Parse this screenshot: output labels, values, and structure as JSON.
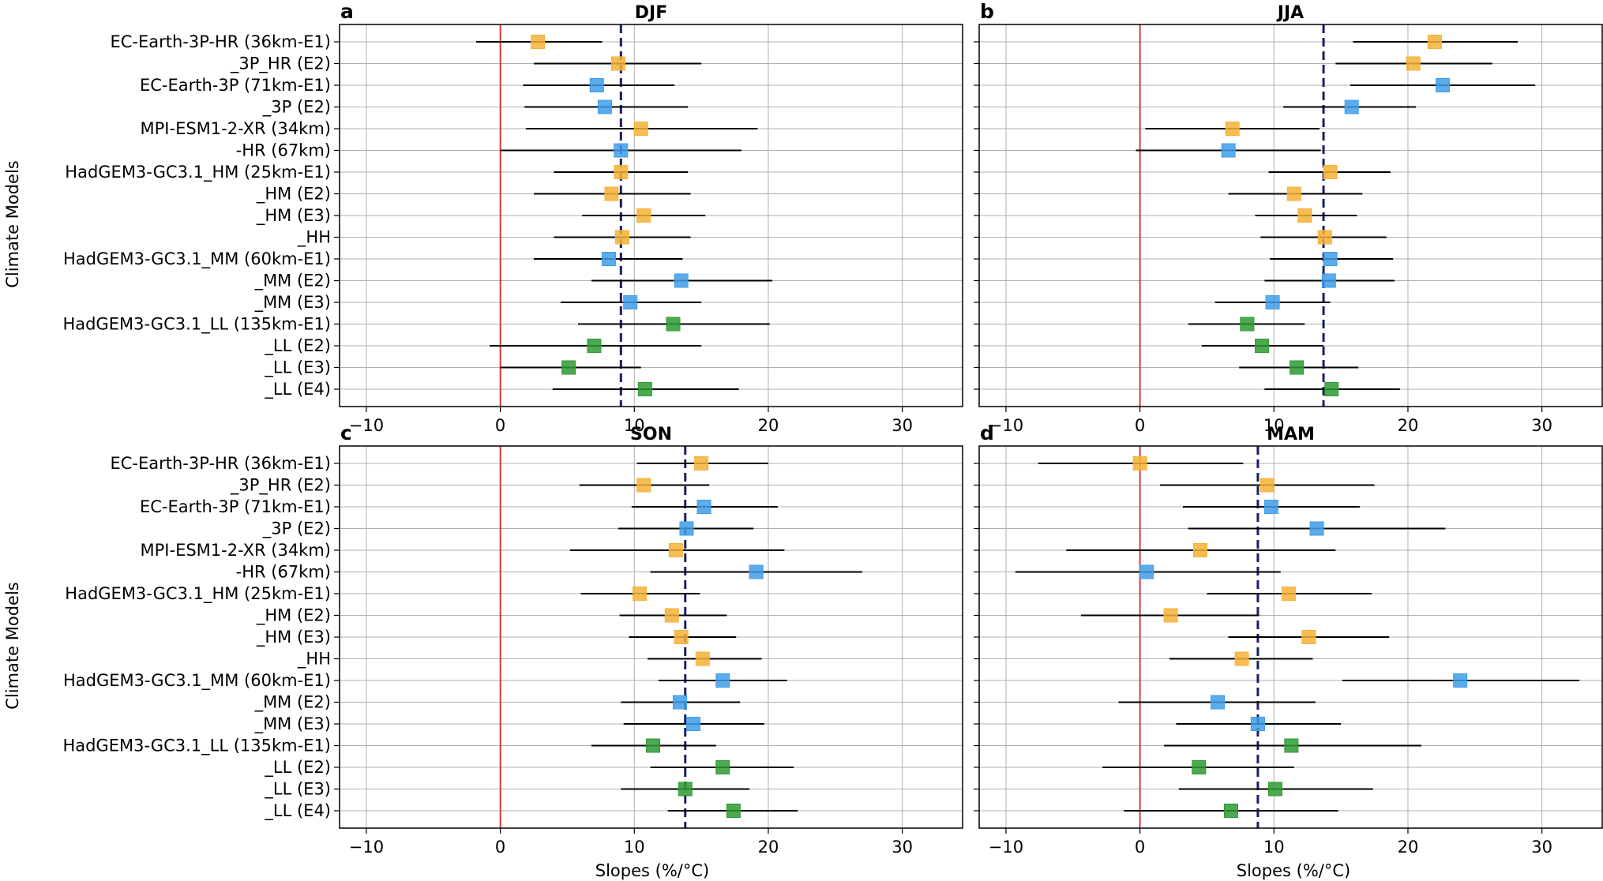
{
  "figure": {
    "ylabel": "Climate Models",
    "xlabel": "Slopes (%/°C)"
  },
  "colors": {
    "orange": "#F5B237",
    "blue": "#3F9EE9",
    "green": "#2E9A33",
    "ref_line": "#D62728",
    "mean_line": "#1A1F66",
    "grid": "#B0B0B0"
  },
  "chart_data": [
    {
      "type": "scatter",
      "panel_label": "a",
      "title": "DJF",
      "xlim": [
        -12,
        34.5
      ],
      "xticks": [
        -10,
        0,
        10,
        20,
        30
      ],
      "grid": true,
      "reference_line": 0,
      "mean": 9.0,
      "categories": [
        "EC-Earth-3P-HR (36km-E1)",
        "_3P_HR (E2)",
        "EC-Earth-3P (71km-E1)",
        "_3P (E2)",
        "MPI-ESM1-2-XR (34km)",
        "-HR (67km)",
        "HadGEM3-GC3.1_HM (25km-E1)",
        "_HM (E2)",
        "_HM (E3)",
        "_HH",
        "HadGEM3-GC3.1_MM (60km-E1)",
        "_MM (E2)",
        "_MM (E3)",
        "HadGEM3-GC3.1_LL (135km-E1)",
        "_LL (E2)",
        "_LL (E3)",
        "_LL (E4)"
      ],
      "colors": [
        "orange",
        "orange",
        "blue",
        "blue",
        "orange",
        "blue",
        "orange",
        "orange",
        "orange",
        "orange",
        "blue",
        "blue",
        "blue",
        "green",
        "green",
        "green",
        "green"
      ],
      "values": [
        2.8,
        8.8,
        7.2,
        7.8,
        10.5,
        9.0,
        9.0,
        8.3,
        10.7,
        9.1,
        8.1,
        13.5,
        9.7,
        12.9,
        7.0,
        5.1,
        10.8
      ],
      "ci_low": [
        -1.8,
        2.5,
        1.7,
        1.8,
        1.9,
        0.0,
        4.0,
        2.5,
        6.1,
        4.0,
        2.5,
        6.8,
        4.5,
        5.8,
        -0.8,
        0.0,
        3.9
      ],
      "ci_high": [
        7.6,
        15.0,
        13.0,
        14.0,
        19.2,
        18.0,
        14.0,
        14.2,
        15.3,
        14.2,
        13.6,
        20.3,
        15.0,
        20.1,
        15.0,
        10.5,
        17.8
      ]
    },
    {
      "type": "scatter",
      "panel_label": "b",
      "title": "JJA",
      "xlim": [
        -12,
        34.5
      ],
      "xticks": [
        -10,
        0,
        10,
        20,
        30
      ],
      "grid": true,
      "reference_line": 0,
      "mean": 13.7,
      "categories": [
        "EC-Earth-3P-HR (36km-E1)",
        "_3P_HR (E2)",
        "EC-Earth-3P (71km-E1)",
        "_3P (E2)",
        "MPI-ESM1-2-XR (34km)",
        "-HR (67km)",
        "HadGEM3-GC3.1_HM (25km-E1)",
        "_HM (E2)",
        "_HM (E3)",
        "_HH",
        "HadGEM3-GC3.1_MM (60km-E1)",
        "_MM (E2)",
        "_MM (E3)",
        "HadGEM3-GC3.1_LL (135km-E1)",
        "_LL (E2)",
        "_LL (E3)",
        "_LL (E4)"
      ],
      "colors": [
        "orange",
        "orange",
        "blue",
        "blue",
        "orange",
        "blue",
        "orange",
        "orange",
        "orange",
        "orange",
        "blue",
        "blue",
        "blue",
        "green",
        "green",
        "green",
        "green"
      ],
      "values": [
        22.0,
        20.4,
        22.6,
        15.8,
        6.9,
        6.6,
        14.2,
        11.5,
        12.3,
        13.8,
        14.2,
        14.1,
        9.9,
        8.0,
        9.1,
        11.7,
        14.3
      ],
      "ci_low": [
        15.9,
        14.6,
        15.7,
        10.7,
        0.4,
        -0.3,
        9.6,
        6.6,
        8.6,
        9.0,
        9.7,
        9.3,
        5.6,
        3.6,
        4.6,
        7.4,
        9.3
      ],
      "ci_high": [
        28.2,
        26.3,
        29.5,
        20.6,
        13.4,
        13.5,
        18.7,
        16.6,
        16.2,
        18.4,
        18.9,
        19.0,
        14.2,
        12.3,
        13.7,
        16.3,
        19.4
      ]
    },
    {
      "type": "scatter",
      "panel_label": "c",
      "title": "SON",
      "xlim": [
        -12,
        34.5
      ],
      "xticks": [
        -10,
        0,
        10,
        20,
        30
      ],
      "grid": true,
      "reference_line": 0,
      "mean": 13.8,
      "categories": [
        "EC-Earth-3P-HR (36km-E1)",
        "_3P_HR (E2)",
        "EC-Earth-3P (71km-E1)",
        "_3P (E2)",
        "MPI-ESM1-2-XR (34km)",
        "-HR (67km)",
        "HadGEM3-GC3.1_HM (25km-E1)",
        "_HM (E2)",
        "_HM (E3)",
        "_HH",
        "HadGEM3-GC3.1_MM (60km-E1)",
        "_MM (E2)",
        "_MM (E3)",
        "HadGEM3-GC3.1_LL (135km-E1)",
        "_LL (E2)",
        "_LL (E3)",
        "_LL (E4)"
      ],
      "colors": [
        "orange",
        "orange",
        "blue",
        "blue",
        "orange",
        "blue",
        "orange",
        "orange",
        "orange",
        "orange",
        "blue",
        "blue",
        "blue",
        "green",
        "green",
        "green",
        "green"
      ],
      "values": [
        15.0,
        10.7,
        15.2,
        13.9,
        13.1,
        19.1,
        10.4,
        12.8,
        13.5,
        15.1,
        16.6,
        13.4,
        14.4,
        11.4,
        16.6,
        13.8,
        17.4
      ],
      "ci_low": [
        10.2,
        5.9,
        9.8,
        8.8,
        5.2,
        11.2,
        6.0,
        8.9,
        9.6,
        11.0,
        11.8,
        9.0,
        9.2,
        6.8,
        11.2,
        9.0,
        12.5
      ],
      "ci_high": [
        20.0,
        15.6,
        20.7,
        18.9,
        21.2,
        27.0,
        14.9,
        16.9,
        17.6,
        19.5,
        21.4,
        17.9,
        19.7,
        16.1,
        21.9,
        18.6,
        22.2
      ]
    },
    {
      "type": "scatter",
      "panel_label": "d",
      "title": "MAM",
      "xlim": [
        -12,
        34.5
      ],
      "xticks": [
        -10,
        0,
        10,
        20,
        30
      ],
      "grid": true,
      "reference_line": 0,
      "mean": 8.8,
      "categories": [
        "EC-Earth-3P-HR (36km-E1)",
        "_3P_HR (E2)",
        "EC-Earth-3P (71km-E1)",
        "_3P (E2)",
        "MPI-ESM1-2-XR (34km)",
        "-HR (67km)",
        "HadGEM3-GC3.1_HM (25km-E1)",
        "_HM (E2)",
        "_HM (E3)",
        "_HH",
        "HadGEM3-GC3.1_MM (60km-E1)",
        "_MM (E2)",
        "_MM (E3)",
        "HadGEM3-GC3.1_LL (135km-E1)",
        "_LL (E2)",
        "_LL (E3)",
        "_LL (E4)"
      ],
      "colors": [
        "orange",
        "orange",
        "blue",
        "blue",
        "orange",
        "blue",
        "orange",
        "orange",
        "orange",
        "orange",
        "blue",
        "blue",
        "blue",
        "green",
        "green",
        "green",
        "green"
      ],
      "values": [
        0.0,
        9.5,
        9.8,
        13.2,
        4.5,
        0.5,
        11.1,
        2.3,
        12.6,
        7.6,
        23.9,
        5.8,
        8.8,
        11.3,
        4.4,
        10.1,
        6.8
      ],
      "ci_low": [
        -7.6,
        1.5,
        3.2,
        3.6,
        -5.5,
        -9.3,
        5.0,
        -4.4,
        6.6,
        2.2,
        15.1,
        -1.6,
        2.7,
        1.8,
        -2.8,
        2.9,
        -1.2
      ],
      "ci_high": [
        7.7,
        17.5,
        16.4,
        22.8,
        14.6,
        10.5,
        17.3,
        8.9,
        18.6,
        12.9,
        32.8,
        13.1,
        15.0,
        21.0,
        11.5,
        17.4,
        14.8
      ]
    }
  ]
}
